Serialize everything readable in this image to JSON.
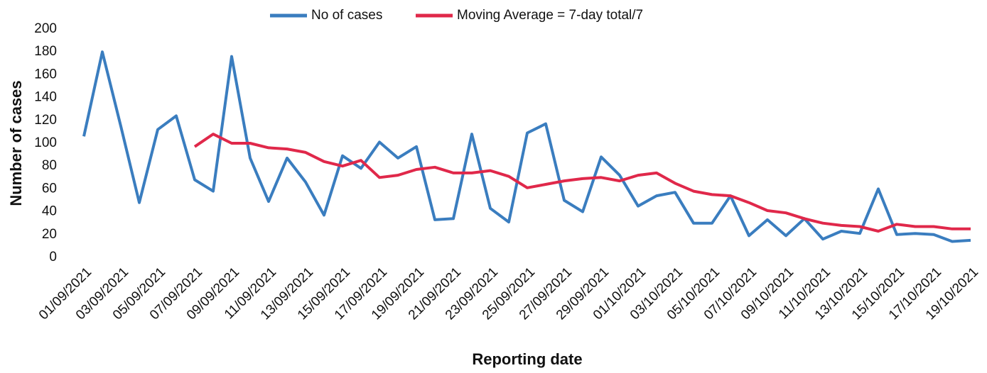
{
  "chart_data": {
    "type": "line",
    "x_label": "Reporting date",
    "y_label": "Number of cases",
    "categories": [
      "01/09/2021",
      null,
      "03/09/2021",
      null,
      "05/09/2021",
      null,
      "07/09/2021",
      null,
      "09/09/2021",
      null,
      "11/09/2021",
      null,
      "13/09/2021",
      null,
      "15/09/2021",
      null,
      "17/09/2021",
      null,
      "19/09/2021",
      null,
      "21/09/2021",
      null,
      "23/09/2021",
      null,
      "25/09/2021",
      null,
      "27/09/2021",
      null,
      "29/09/2021",
      null,
      "01/10/2021",
      null,
      "03/10/2021",
      null,
      "05/10/2021",
      null,
      "07/10/2021",
      null,
      "09/10/2021",
      null,
      "11/10/2021",
      null,
      "13/10/2021",
      null,
      "15/10/2021",
      null,
      "17/10/2021",
      null,
      "19/10/2021"
    ],
    "series": [
      {
        "name": "No of cases",
        "color": "#3a7dbf",
        "values": [
          106,
          180,
          115,
          48,
          112,
          124,
          68,
          58,
          176,
          87,
          49,
          87,
          66,
          37,
          89,
          78,
          101,
          87,
          97,
          33,
          34,
          108,
          43,
          31,
          109,
          117,
          50,
          40,
          88,
          72,
          45,
          54,
          57,
          30,
          30,
          54,
          19,
          33,
          19,
          34,
          16,
          23,
          21,
          60,
          20,
          21,
          20,
          14,
          15
        ]
      },
      {
        "name": "Moving Average = 7-day total/7",
        "color": "#e0284a",
        "values": [
          null,
          null,
          null,
          null,
          null,
          null,
          97,
          108,
          100,
          100,
          96,
          95,
          92,
          84,
          80,
          85,
          70,
          72,
          77,
          79,
          74,
          74,
          76,
          71,
          61,
          64,
          67,
          69,
          70,
          67,
          72,
          74,
          65,
          58,
          55,
          54,
          48,
          41,
          39,
          34,
          30,
          28,
          27,
          23,
          29,
          27,
          27,
          25,
          25
        ]
      }
    ],
    "ylim": [
      0,
      200
    ],
    "yticks": [
      0,
      20,
      40,
      60,
      80,
      100,
      120,
      140,
      160,
      180,
      200
    ],
    "grid": false,
    "legend": "top"
  }
}
